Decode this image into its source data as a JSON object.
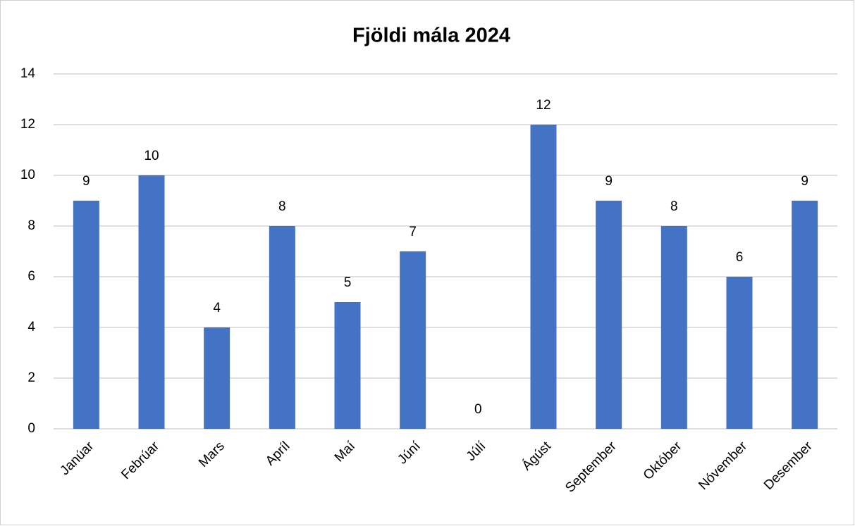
{
  "chart_data": {
    "type": "bar",
    "title": "Fjöldi mála 2024",
    "categories": [
      "Janúar",
      "Febrúar",
      "Mars",
      "Apríl",
      "Maí",
      "Júní",
      "Júlí",
      "Ágúst",
      "September",
      "Október",
      "Nóvember",
      "Desember"
    ],
    "values": [
      9,
      10,
      4,
      8,
      5,
      7,
      0,
      12,
      9,
      8,
      6,
      9
    ],
    "color": "#4472c4",
    "ylim": [
      0,
      14
    ],
    "yticks": [
      0,
      2,
      4,
      6,
      8,
      10,
      12,
      14
    ],
    "grid": true
  }
}
